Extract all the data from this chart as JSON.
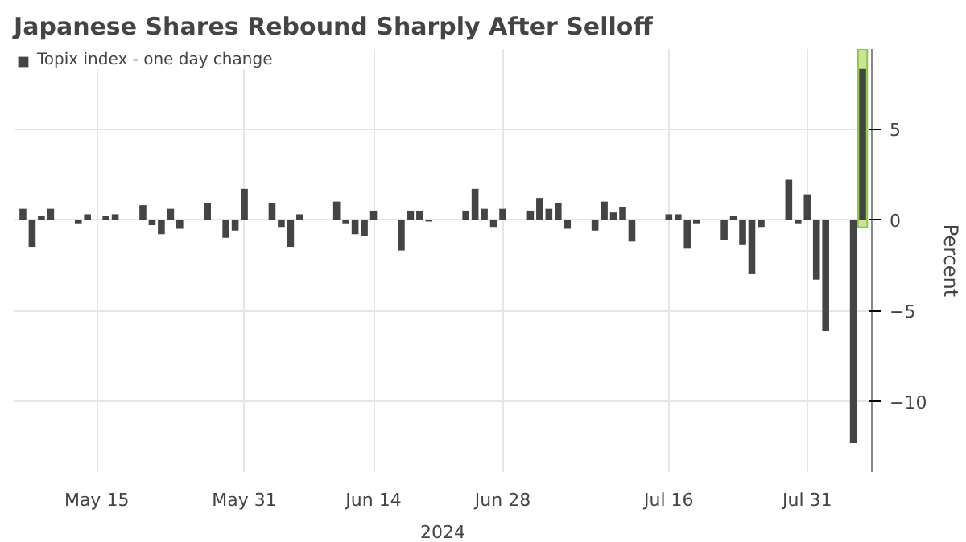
{
  "chart_data": {
    "type": "bar",
    "title": "Japanese Shares Rebound Sharply After Selloff",
    "xlabel": "2024",
    "ylabel": "Percent",
    "x": [
      "2024-05-07",
      "2024-05-08",
      "2024-05-09",
      "2024-05-10",
      "2024-05-13",
      "2024-05-14",
      "2024-05-15",
      "2024-05-16",
      "2024-05-17",
      "2024-05-20",
      "2024-05-21",
      "2024-05-22",
      "2024-05-23",
      "2024-05-24",
      "2024-05-27",
      "2024-05-28",
      "2024-05-29",
      "2024-05-30",
      "2024-05-31",
      "2024-06-03",
      "2024-06-04",
      "2024-06-05",
      "2024-06-06",
      "2024-06-07",
      "2024-06-10",
      "2024-06-11",
      "2024-06-12",
      "2024-06-13",
      "2024-06-14",
      "2024-06-17",
      "2024-06-18",
      "2024-06-19",
      "2024-06-20",
      "2024-06-21",
      "2024-06-24",
      "2024-06-25",
      "2024-06-26",
      "2024-06-27",
      "2024-06-28",
      "2024-07-01",
      "2024-07-02",
      "2024-07-03",
      "2024-07-04",
      "2024-07-05",
      "2024-07-08",
      "2024-07-09",
      "2024-07-10",
      "2024-07-11",
      "2024-07-12",
      "2024-07-16",
      "2024-07-17",
      "2024-07-18",
      "2024-07-19",
      "2024-07-22",
      "2024-07-23",
      "2024-07-24",
      "2024-07-25",
      "2024-07-26",
      "2024-07-29",
      "2024-07-30",
      "2024-07-31",
      "2024-08-01",
      "2024-08-02",
      "2024-08-05",
      "2024-08-06"
    ],
    "series": [
      {
        "name": "Topix index - one day change",
        "color": "#444444",
        "values": [
          0.6,
          -1.5,
          0.2,
          0.6,
          -0.2,
          0.3,
          0.0,
          0.2,
          0.3,
          0.8,
          -0.3,
          -0.8,
          0.6,
          -0.5,
          0.9,
          0.0,
          -1.0,
          -0.6,
          1.7,
          0.9,
          -0.4,
          -1.5,
          0.3,
          0.0,
          1.0,
          -0.2,
          -0.8,
          -0.9,
          0.5,
          -1.7,
          0.5,
          0.5,
          -0.1,
          0.0,
          0.5,
          1.7,
          0.6,
          -0.4,
          0.6,
          0.5,
          1.2,
          0.6,
          0.9,
          -0.5,
          -0.6,
          1.0,
          0.4,
          0.7,
          -1.2,
          0.3,
          0.3,
          -1.6,
          -0.2,
          -1.1,
          0.2,
          -1.4,
          -3.0,
          -0.4,
          2.2,
          -0.2,
          1.4,
          -3.3,
          -6.1,
          -12.3,
          8.3
        ]
      }
    ],
    "xlim": [
      "2024-05-06",
      "2024-08-07"
    ],
    "ylim": [
      -13.9,
      9.4
    ],
    "yticks": [
      -10,
      -5,
      0,
      5
    ],
    "xticks": [
      {
        "value": "2024-05-15",
        "label": "May 15"
      },
      {
        "value": "2024-05-31",
        "label": "May 31"
      },
      {
        "value": "2024-06-14",
        "label": "Jun 14"
      },
      {
        "value": "2024-06-28",
        "label": "Jun 28"
      },
      {
        "value": "2024-07-16",
        "label": "Jul 16"
      },
      {
        "value": "2024-07-31",
        "label": "Jul 31"
      }
    ],
    "bands": [
      {
        "axis": "x",
        "from": "2024-08-05T12:00",
        "to": "2024-08-06T12:00",
        "color": "#b8e07a"
      }
    ],
    "grid": true,
    "legend": "top left"
  }
}
